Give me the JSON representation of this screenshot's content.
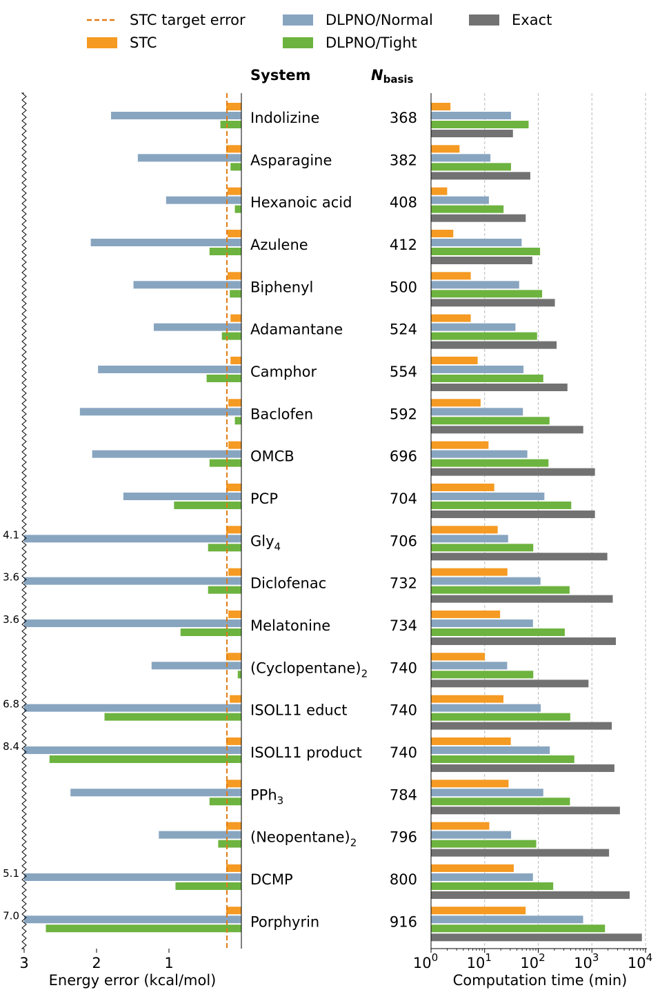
{
  "legend": {
    "items": [
      {
        "label": "STC target error",
        "kind": "dashed",
        "color": "#e07b15"
      },
      {
        "label": "STC",
        "kind": "patch",
        "color": "#f59a23"
      },
      {
        "label": "DLPNO/Normal",
        "kind": "patch",
        "color": "#88a5c0"
      },
      {
        "label": "DLPNO/Tight",
        "kind": "patch",
        "color": "#6db33f"
      },
      {
        "label": "Exact",
        "kind": "patch",
        "color": "#727272"
      }
    ]
  },
  "headers": {
    "system": "System",
    "nbasis_main": "N",
    "nbasis_sub": "basis"
  },
  "chart_data": [
    {
      "type": "bar",
      "orientation": "horizontal",
      "x_direction": "reversed",
      "xlabel": "Energy error (kcal/mol)",
      "xlim": [
        3,
        0
      ],
      "xticks": [
        "3",
        "2",
        "1"
      ],
      "target_error": 0.2,
      "axis_break": "left",
      "categories": [
        "Indolizine",
        "Asparagine",
        "Hexanoic acid",
        "Azulene",
        "Biphenyl",
        "Adamantane",
        "Camphor",
        "Baclofen",
        "OMCB",
        "PCP",
        "Gly4",
        "Diclofenac",
        "Melatonine",
        "(Cyclopentane)2",
        "ISOL11 educt",
        "ISOL11 product",
        "PPh3",
        "(Neopentane)2",
        "DCMP",
        "Porphyrin"
      ],
      "series": [
        {
          "name": "STC",
          "values": [
            0.21,
            0.21,
            0.19,
            0.19,
            0.19,
            0.15,
            0.15,
            0.18,
            0.18,
            0.21,
            0.21,
            0.18,
            0.18,
            0.21,
            0.16,
            0.21,
            0.21,
            0.21,
            0.21,
            0.21
          ]
        },
        {
          "name": "DLPNO/Normal",
          "values": [
            1.8,
            1.43,
            1.04,
            2.08,
            1.49,
            1.21,
            1.98,
            2.23,
            2.06,
            1.63,
            4.1,
            3.6,
            3.6,
            1.24,
            6.8,
            8.4,
            2.36,
            1.14,
            5.1,
            7.0
          ]
        },
        {
          "name": "DLPNO/Tight",
          "values": [
            0.29,
            0.15,
            0.09,
            0.44,
            0.16,
            0.27,
            0.48,
            0.09,
            0.44,
            0.93,
            0.46,
            0.46,
            0.84,
            0.05,
            1.89,
            2.65,
            0.44,
            0.32,
            0.91,
            2.7
          ]
        }
      ],
      "break_labels": [
        {
          "row": 10,
          "text": "4.1"
        },
        {
          "row": 11,
          "text": "3.6"
        },
        {
          "row": 12,
          "text": "3.6"
        },
        {
          "row": 14,
          "text": "6.8"
        },
        {
          "row": 15,
          "text": "8.4"
        },
        {
          "row": 18,
          "text": "5.1"
        },
        {
          "row": 19,
          "text": "7.0"
        }
      ]
    },
    {
      "type": "bar",
      "orientation": "horizontal",
      "x_scale": "log",
      "xlabel": "Computation time (min)",
      "xlim": [
        1,
        10000
      ],
      "xticks": [
        {
          "base": "10",
          "exp": "0"
        },
        {
          "base": "10",
          "exp": "1"
        },
        {
          "base": "10",
          "exp": "2"
        },
        {
          "base": "10",
          "exp": "3"
        },
        {
          "base": "10",
          "exp": "4"
        }
      ],
      "grid": "vertical-dashed",
      "categories": [
        "Indolizine",
        "Asparagine",
        "Hexanoic acid",
        "Azulene",
        "Biphenyl",
        "Adamantane",
        "Camphor",
        "Baclofen",
        "OMCB",
        "PCP",
        "Gly4",
        "Diclofenac",
        "Melatonine",
        "(Cyclopentane)2",
        "ISOL11 educt",
        "ISOL11 product",
        "PPh3",
        "(Neopentane)2",
        "DCMP",
        "Porphyrin"
      ],
      "series": [
        {
          "name": "STC",
          "values": [
            2.3,
            3.4,
            2.0,
            2.6,
            5.5,
            5.5,
            7.4,
            8.4,
            11.8,
            15.1,
            17.5,
            26.6,
            19.4,
            10.1,
            22.4,
            30.7,
            27.9,
            12.2,
            34.9,
            58.1
          ]
        },
        {
          "name": "DLPNO/Normal",
          "values": [
            31,
            12.8,
            12,
            49,
            44,
            37.5,
            53,
            51.7,
            62.5,
            130,
            27.4,
            110,
            79.6,
            26.3,
            111,
            164,
            124,
            31.1,
            79.5,
            686
          ]
        },
        {
          "name": "DLPNO/Tight",
          "values": [
            66,
            31,
            22.5,
            108,
            118,
            95,
            124,
            162,
            155,
            412,
            80.6,
            384,
            312,
            80.6,
            395,
            470,
            390,
            91.7,
            190,
            1756
          ]
        },
        {
          "name": "Exact",
          "values": [
            33.7,
            71,
            58.3,
            77.4,
            204,
            220,
            350,
            690,
            1140,
            1140,
            1940,
            2450,
            2800,
            864,
            2350,
            2630,
            3330,
            2090,
            5060,
            8560
          ]
        }
      ]
    }
  ],
  "rows": [
    {
      "name": "Indolizine",
      "sub": "",
      "nbasis": "368"
    },
    {
      "name": "Asparagine",
      "sub": "",
      "nbasis": "382"
    },
    {
      "name": "Hexanoic acid",
      "sub": "",
      "nbasis": "408"
    },
    {
      "name": "Azulene",
      "sub": "",
      "nbasis": "412"
    },
    {
      "name": "Biphenyl",
      "sub": "",
      "nbasis": "500"
    },
    {
      "name": "Adamantane",
      "sub": "",
      "nbasis": "524"
    },
    {
      "name": "Camphor",
      "sub": "",
      "nbasis": "554"
    },
    {
      "name": "Baclofen",
      "sub": "",
      "nbasis": "592"
    },
    {
      "name": "OMCB",
      "sub": "",
      "nbasis": "696"
    },
    {
      "name": "PCP",
      "sub": "",
      "nbasis": "704"
    },
    {
      "name": "Gly",
      "sub": "4",
      "nbasis": "706"
    },
    {
      "name": "Diclofenac",
      "sub": "",
      "nbasis": "732"
    },
    {
      "name": "Melatonine",
      "sub": "",
      "nbasis": "734"
    },
    {
      "name": "(Cyclopentane)",
      "sub": "2",
      "nbasis": "740"
    },
    {
      "name": "ISOL11 educt",
      "sub": "",
      "nbasis": "740"
    },
    {
      "name": "ISOL11 product",
      "sub": "",
      "nbasis": "740"
    },
    {
      "name": "PPh",
      "sub": "3",
      "nbasis": "784"
    },
    {
      "name": "(Neopentane)",
      "sub": "2",
      "nbasis": "796"
    },
    {
      "name": "DCMP",
      "sub": "",
      "nbasis": "800"
    },
    {
      "name": "Porphyrin",
      "sub": "",
      "nbasis": "916"
    }
  ]
}
